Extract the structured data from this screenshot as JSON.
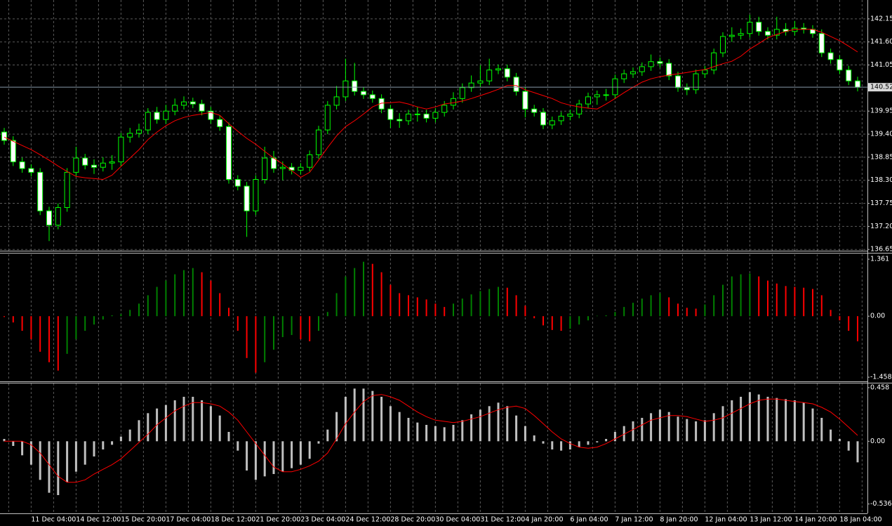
{
  "chart_data": [
    {
      "type": "candlestick",
      "categories": [
        null,
        null,
        null,
        "11 Dec 04:00",
        null,
        null,
        null,
        null,
        "14 Dec 12:00",
        null,
        null,
        null,
        null,
        "15 Dec 20:00",
        null,
        null,
        null,
        null,
        "17 Dec 04:00",
        null,
        null,
        null,
        null,
        "18 Dec 12:00",
        null,
        null,
        null,
        null,
        "21 Dec 20:00",
        null,
        null,
        null,
        null,
        "23 Dec 04:00",
        null,
        null,
        null,
        null,
        "24 Dec 12:00",
        null,
        null,
        null,
        null,
        "28 Dec 20:00",
        null,
        null,
        null,
        null,
        "30 Dec 04:00",
        null,
        null,
        null,
        null,
        "31 Dec 12:00",
        null,
        null,
        null,
        null,
        "4 Jan 20:00",
        null,
        null,
        null,
        null,
        "6 Jan 04:00",
        null,
        null,
        null,
        null,
        "7 Jan 12:00",
        null,
        null,
        null,
        null,
        "8 Jan 20:00",
        null,
        null,
        null,
        null,
        "12 Jan 04:00",
        null,
        null,
        null,
        null,
        "13 Jan 12:00",
        null,
        null,
        null,
        null,
        "14 Jan 20:00",
        null,
        null,
        null,
        null,
        "18 Jan 04:00",
        null,
        null
      ],
      "open": [
        139.45,
        139.25,
        138.74,
        138.58,
        138.49,
        137.57,
        137.23,
        137.65,
        138.49,
        138.83,
        138.66,
        138.61,
        138.71,
        138.74,
        139.33,
        139.42,
        139.5,
        139.92,
        139.75,
        139.95,
        140.09,
        140.17,
        140.12,
        139.95,
        139.75,
        139.58,
        138.32,
        138.16,
        137.57,
        138.32,
        138.83,
        138.58,
        138.61,
        138.54,
        138.61,
        138.91,
        139.5,
        140.09,
        140.29,
        140.67,
        140.42,
        140.34,
        140.25,
        140.0,
        139.75,
        139.72,
        139.88,
        139.88,
        139.78,
        139.92,
        140.09,
        140.25,
        140.51,
        140.62,
        140.67,
        140.93,
        140.96,
        140.76,
        140.42,
        140.0,
        139.92,
        139.62,
        139.72,
        139.83,
        139.88,
        140.12,
        140.29,
        140.34,
        140.34,
        140.72,
        140.84,
        140.89,
        141.01,
        141.13,
        141.09,
        140.79,
        140.51,
        140.46,
        140.84,
        140.93,
        141.34,
        141.73,
        141.76,
        141.8,
        142.07,
        141.85,
        141.76,
        141.9,
        141.85,
        141.93,
        141.9,
        141.8,
        141.34,
        141.18,
        140.93,
        140.67
      ],
      "high": [
        139.55,
        139.35,
        138.84,
        138.68,
        138.59,
        137.67,
        137.75,
        138.59,
        139.1,
        138.93,
        138.8,
        138.85,
        138.9,
        139.43,
        139.55,
        139.65,
        140.02,
        140.05,
        140.1,
        140.25,
        140.3,
        140.27,
        140.22,
        140.05,
        139.85,
        139.68,
        138.42,
        138.26,
        138.42,
        139.1,
        139.0,
        138.75,
        138.71,
        138.71,
        139.01,
        139.6,
        140.19,
        140.55,
        141.2,
        141.1,
        140.52,
        140.44,
        140.35,
        140.1,
        139.9,
        139.98,
        140.05,
        139.98,
        140.02,
        140.19,
        140.4,
        140.61,
        140.8,
        141.05,
        141.2,
        141.06,
        141.06,
        140.86,
        140.52,
        140.1,
        140.02,
        139.82,
        139.93,
        139.98,
        140.22,
        140.39,
        140.44,
        140.48,
        140.82,
        140.94,
        140.99,
        141.11,
        141.3,
        141.23,
        141.19,
        140.89,
        140.61,
        140.94,
        141.03,
        141.44,
        141.83,
        141.95,
        141.92,
        142.25,
        142.2,
        141.95,
        142.2,
        142.05,
        142.1,
        142.05,
        142.0,
        141.9,
        141.44,
        141.28,
        141.03,
        140.77
      ],
      "low": [
        139.15,
        138.64,
        138.48,
        138.39,
        137.47,
        136.85,
        137.13,
        137.55,
        138.39,
        138.56,
        138.45,
        138.51,
        138.55,
        138.64,
        139.2,
        139.32,
        139.4,
        139.65,
        139.65,
        139.85,
        139.99,
        140.02,
        139.85,
        139.65,
        139.48,
        138.22,
        138.06,
        136.95,
        137.47,
        138.22,
        138.48,
        138.3,
        138.44,
        138.44,
        138.51,
        138.81,
        139.4,
        139.99,
        140.19,
        140.32,
        140.24,
        140.15,
        139.9,
        139.55,
        139.55,
        139.62,
        139.7,
        139.68,
        139.68,
        139.82,
        139.99,
        140.15,
        140.41,
        140.52,
        140.57,
        140.83,
        140.66,
        140.32,
        139.8,
        139.82,
        139.52,
        139.52,
        139.62,
        139.73,
        139.78,
        140.02,
        140.1,
        140.2,
        140.24,
        140.62,
        140.74,
        140.79,
        140.91,
        140.99,
        140.69,
        140.41,
        140.33,
        140.36,
        140.74,
        140.83,
        141.24,
        141.6,
        141.66,
        141.7,
        141.75,
        141.66,
        141.66,
        141.75,
        141.75,
        141.8,
        141.7,
        141.24,
        141.08,
        140.83,
        140.57,
        140.42
      ],
      "close": [
        139.25,
        138.74,
        138.58,
        138.49,
        137.57,
        137.23,
        137.65,
        138.49,
        138.83,
        138.66,
        138.61,
        138.71,
        138.74,
        139.33,
        139.42,
        139.5,
        139.92,
        139.75,
        139.95,
        140.09,
        140.17,
        140.12,
        139.95,
        139.75,
        139.58,
        138.32,
        138.16,
        137.57,
        138.32,
        138.83,
        138.58,
        138.61,
        138.54,
        138.61,
        138.91,
        139.5,
        140.09,
        140.29,
        140.67,
        140.42,
        140.34,
        140.25,
        140.0,
        139.75,
        139.72,
        139.88,
        139.88,
        139.78,
        139.92,
        140.09,
        140.25,
        140.51,
        140.62,
        140.67,
        140.93,
        140.96,
        140.76,
        140.42,
        140.0,
        139.92,
        139.62,
        139.72,
        139.83,
        139.88,
        140.12,
        140.29,
        140.34,
        140.34,
        140.72,
        140.84,
        140.89,
        141.01,
        141.13,
        141.09,
        140.79,
        140.51,
        140.46,
        140.84,
        140.93,
        141.34,
        141.73,
        141.76,
        141.8,
        142.07,
        141.85,
        141.76,
        141.9,
        141.85,
        141.93,
        141.9,
        141.8,
        141.34,
        141.18,
        140.93,
        140.67,
        140.52
      ],
      "up_color": "#000000",
      "down_color": "#ffffff",
      "wick_color": "#00ff00",
      "overlay": {
        "color": "#ff0000",
        "values": [
          139.33,
          139.23,
          139.13,
          139.03,
          138.91,
          138.78,
          138.64,
          138.51,
          138.39,
          138.36,
          138.34,
          138.32,
          138.42,
          138.63,
          138.83,
          139.03,
          139.27,
          139.45,
          139.6,
          139.72,
          139.8,
          139.85,
          139.88,
          139.92,
          139.85,
          139.65,
          139.47,
          139.3,
          139.16,
          138.99,
          138.83,
          138.69,
          138.53,
          138.37,
          138.49,
          138.78,
          139.08,
          139.36,
          139.58,
          139.72,
          139.88,
          140.05,
          140.14,
          140.15,
          140.17,
          140.12,
          140.05,
          140.0,
          140.05,
          140.12,
          140.15,
          140.19,
          140.25,
          140.32,
          140.39,
          140.47,
          140.56,
          140.56,
          140.46,
          140.39,
          140.32,
          140.25,
          140.15,
          140.09,
          140.05,
          140.02,
          140.0,
          140.12,
          140.25,
          140.39,
          140.52,
          140.64,
          140.72,
          140.77,
          140.81,
          140.84,
          140.87,
          140.91,
          140.94,
          141.01,
          141.08,
          141.14,
          141.26,
          141.43,
          141.56,
          141.7,
          141.78,
          141.85,
          141.9,
          141.9,
          141.9,
          141.83,
          141.73,
          141.63,
          141.5,
          141.36
        ]
      },
      "current_price": 140.52,
      "ylim": [
        136.62,
        142.6
      ],
      "yticks": [
        142.15,
        {
          "value": 141.6,
          "label": "141.60"
        },
        141.05,
        139.95,
        {
          "value": 139.4,
          "label": "139.40"
        },
        138.85,
        {
          "value": 138.3,
          "label": "138.30"
        },
        137.75,
        {
          "value": 137.2,
          "label": "137.20"
        },
        136.65
      ],
      "grid": true
    },
    {
      "type": "bar",
      "values": [
        -0.02,
        -0.15,
        -0.35,
        -0.55,
        -0.85,
        -1.1,
        -1.3,
        -0.9,
        -0.55,
        -0.35,
        -0.2,
        -0.08,
        0.02,
        0.05,
        0.15,
        0.3,
        0.5,
        0.7,
        0.85,
        1.0,
        1.1,
        1.15,
        1.05,
        0.85,
        0.55,
        0.2,
        -0.35,
        -1.0,
        -1.35,
        -1.1,
        -0.8,
        -0.5,
        -0.45,
        -0.55,
        -0.6,
        -0.35,
        0.1,
        0.55,
        0.95,
        1.15,
        1.3,
        1.25,
        1.05,
        0.75,
        0.55,
        0.5,
        0.45,
        0.4,
        0.3,
        0.22,
        0.3,
        0.42,
        0.52,
        0.6,
        0.65,
        0.7,
        0.68,
        0.5,
        0.25,
        -0.05,
        -0.22,
        -0.33,
        -0.35,
        -0.3,
        -0.2,
        -0.1,
        0.01,
        0.02,
        0.1,
        0.22,
        0.32,
        0.42,
        0.5,
        0.55,
        0.45,
        0.3,
        0.2,
        0.18,
        0.28,
        0.5,
        0.75,
        0.95,
        1.0,
        1.02,
        0.95,
        0.85,
        0.78,
        0.72,
        0.7,
        0.68,
        0.65,
        0.5,
        0.15,
        -0.1,
        -0.35,
        -0.6
      ],
      "up_color": "#008000",
      "down_color": "#ff0000",
      "ylim": [
        -1.54,
        1.48
      ],
      "yticks": [
        1.361,
        {
          "value": 0,
          "label": "0.00"
        },
        -1.458
      ]
    },
    {
      "type": "macd",
      "values": [
        0.02,
        -0.04,
        -0.12,
        -0.2,
        -0.33,
        -0.44,
        -0.46,
        -0.35,
        -0.26,
        -0.2,
        -0.13,
        -0.07,
        -0.03,
        0.04,
        0.1,
        0.18,
        0.24,
        0.28,
        0.31,
        0.35,
        0.38,
        0.38,
        0.35,
        0.3,
        0.22,
        0.08,
        -0.08,
        -0.25,
        -0.33,
        -0.3,
        -0.28,
        -0.26,
        -0.23,
        -0.2,
        -0.15,
        -0.02,
        0.1,
        0.25,
        0.38,
        0.45,
        0.45,
        0.43,
        0.38,
        0.3,
        0.25,
        0.2,
        0.16,
        0.14,
        0.13,
        0.12,
        0.14,
        0.18,
        0.23,
        0.27,
        0.3,
        0.33,
        0.3,
        0.22,
        0.13,
        0.05,
        -0.02,
        -0.07,
        -0.08,
        -0.07,
        -0.05,
        -0.03,
        -0.01,
        0.02,
        0.08,
        0.13,
        0.17,
        0.2,
        0.24,
        0.27,
        0.25,
        0.21,
        0.19,
        0.17,
        0.18,
        0.24,
        0.3,
        0.35,
        0.38,
        0.42,
        0.4,
        0.38,
        0.37,
        0.36,
        0.35,
        0.33,
        0.28,
        0.2,
        0.1,
        0.02,
        -0.08,
        -0.18
      ],
      "color": "#c0c0c0",
      "signal": {
        "color": "#ff0000",
        "values": [
          0.0,
          0.0,
          0.0,
          -0.03,
          -0.1,
          -0.2,
          -0.3,
          -0.35,
          -0.35,
          -0.33,
          -0.28,
          -0.24,
          -0.2,
          -0.15,
          -0.08,
          -0.01,
          0.06,
          0.14,
          0.2,
          0.26,
          0.3,
          0.33,
          0.33,
          0.32,
          0.3,
          0.25,
          0.18,
          0.08,
          -0.02,
          -0.12,
          -0.22,
          -0.26,
          -0.26,
          -0.24,
          -0.21,
          -0.17,
          -0.1,
          0.02,
          0.15,
          0.25,
          0.34,
          0.39,
          0.4,
          0.38,
          0.35,
          0.3,
          0.25,
          0.21,
          0.18,
          0.17,
          0.16,
          0.17,
          0.19,
          0.21,
          0.24,
          0.27,
          0.29,
          0.3,
          0.28,
          0.22,
          0.15,
          0.08,
          0.02,
          -0.02,
          -0.05,
          -0.06,
          -0.05,
          -0.02,
          0.02,
          0.06,
          0.1,
          0.14,
          0.18,
          0.2,
          0.22,
          0.22,
          0.21,
          0.19,
          0.17,
          0.18,
          0.2,
          0.24,
          0.28,
          0.32,
          0.35,
          0.36,
          0.36,
          0.35,
          0.34,
          0.33,
          0.32,
          0.29,
          0.25,
          0.19,
          0.12,
          0.05
        ]
      },
      "ylim": [
        -0.616,
        0.494
      ],
      "yticks": [
        0.458,
        {
          "value": 0,
          "label": "0.00"
        },
        -0.536
      ]
    }
  ]
}
